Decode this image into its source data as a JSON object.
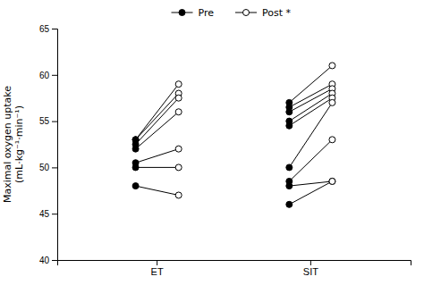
{
  "chart_data": {
    "type": "slope",
    "ylabel": "Maximal oxygen uptake\n(mL·kg⁻¹·min⁻¹)",
    "categories": [
      "ET",
      "SIT"
    ],
    "ylim": [
      40,
      65
    ],
    "yticks": [
      40,
      45,
      50,
      55,
      60,
      65
    ],
    "grid": false,
    "legend": "top",
    "color": "#000000",
    "series": [
      {
        "name": "Pre",
        "color": "#000000",
        "marker": "filled",
        "values": [
          [
            53.0,
            53.0,
            52.5,
            52.0,
            50.5,
            50.0,
            48.0
          ],
          [
            57.0,
            56.5,
            56.0,
            55.0,
            54.5,
            50.0,
            48.5,
            48.0,
            46.0
          ]
        ]
      },
      {
        "name": "Post *",
        "color": "#000000",
        "marker": "open",
        "values": [
          [
            59.0,
            58.0,
            57.5,
            56.0,
            52.0,
            50.0,
            47.0
          ],
          [
            61.0,
            59.0,
            58.5,
            58.0,
            57.5,
            57.0,
            53.0,
            48.5,
            48.5
          ]
        ]
      }
    ]
  }
}
